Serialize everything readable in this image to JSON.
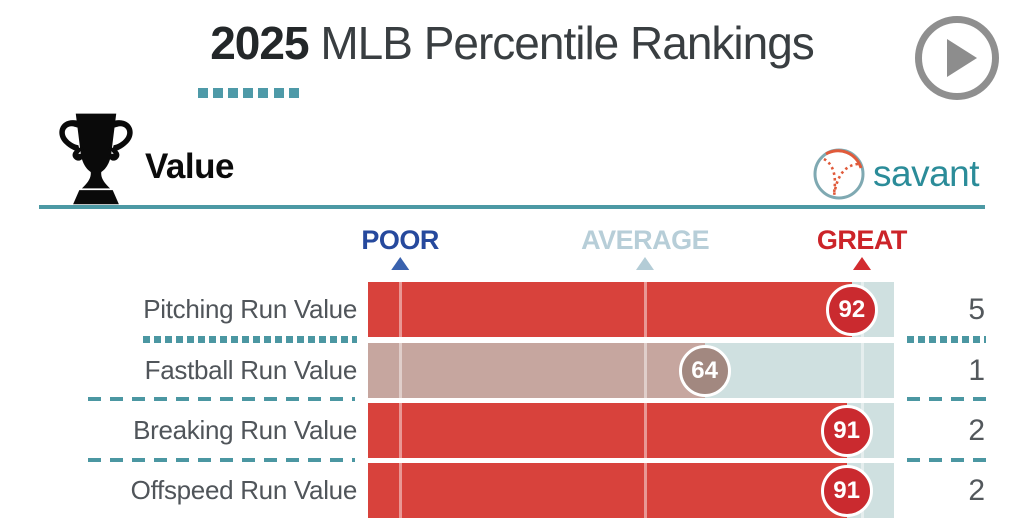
{
  "title": {
    "year": "2025",
    "rest": " MLB Percentile Rankings"
  },
  "header": {
    "section_label": "Value",
    "brand": "savant",
    "icons": [
      "trophy-icon",
      "baseball-icon",
      "play-icon"
    ]
  },
  "colors": {
    "accent_teal": "#4b97a2",
    "brand_teal": "#2b8c99",
    "divider_teal": "#4c99a4",
    "track": "#cfe0e0",
    "red_bar": "#d8423c",
    "red_badge": "#ca2a2f",
    "taupe_bar": "#c6a69f",
    "taupe_badge": "#a28880",
    "badge_text": "#ffffff",
    "play_gray": "#8f8f8f"
  },
  "scale": {
    "markers": [
      {
        "label": "POOR",
        "text_color": "#26499d",
        "triangle_color": "#3a62ae",
        "pos_pct": 6.1
      },
      {
        "label": "AVERAGE",
        "text_color": "#b7ced8",
        "triangle_color": "#b3ccd6",
        "pos_pct": 52.7
      },
      {
        "label": "GREAT",
        "text_color": "#cc2429",
        "triangle_color": "#d22b2f",
        "pos_pct": 93.9
      }
    ]
  },
  "chart_data": {
    "type": "bar",
    "title": "2025 MLB Percentile Rankings",
    "subtitle": "Value",
    "xlim": [
      0,
      100
    ],
    "grid": false,
    "legend": "none",
    "categories": [
      "Pitching Run Value",
      "Fastball Run Value",
      "Breaking Run Value",
      "Offspeed Run Value"
    ],
    "series": [
      {
        "name": "Percentile",
        "values": [
          92,
          64,
          91,
          91
        ]
      },
      {
        "name": "Run Value",
        "values": [
          5,
          1,
          2,
          2
        ]
      }
    ],
    "rows": [
      {
        "label": "Pitching Run Value",
        "percentile": 92,
        "run_value": 5,
        "bar_color": "#d8423c",
        "badge_color": "#ca2a2f",
        "separator_after": "dotted"
      },
      {
        "label": "Fastball Run Value",
        "percentile": 64,
        "run_value": 1,
        "bar_color": "#c6a69f",
        "badge_color": "#a28880",
        "separator_after": "dashed"
      },
      {
        "label": "Breaking Run Value",
        "percentile": 91,
        "run_value": 2,
        "bar_color": "#d8423c",
        "badge_color": "#ca2a2f",
        "separator_after": "dashed"
      },
      {
        "label": "Offspeed Run Value",
        "percentile": 91,
        "run_value": 2,
        "bar_color": "#d8423c",
        "badge_color": "#ca2a2f",
        "separator_after": "none"
      }
    ],
    "track_color": "#cfe0e0"
  }
}
